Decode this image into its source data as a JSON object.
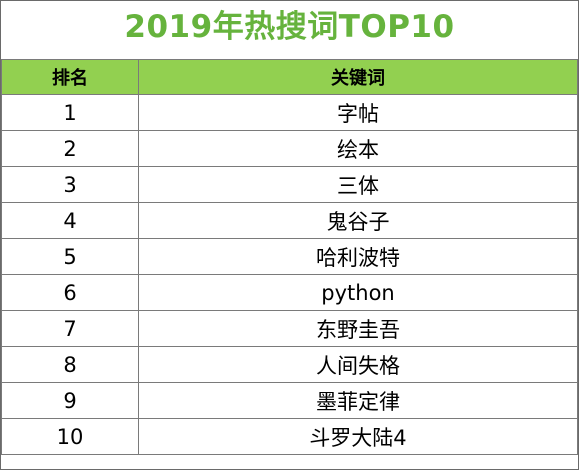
{
  "title": "2019年热搜词TOP10",
  "columns": [
    "排名",
    "关键词"
  ],
  "rows": [
    {
      "rank": "1",
      "keyword": "字帖"
    },
    {
      "rank": "2",
      "keyword": "绘本"
    },
    {
      "rank": "3",
      "keyword": "三体"
    },
    {
      "rank": "4",
      "keyword": "鬼谷子"
    },
    {
      "rank": "5",
      "keyword": "哈利波特"
    },
    {
      "rank": "6",
      "keyword": "python"
    },
    {
      "rank": "7",
      "keyword": "东野圭吾"
    },
    {
      "rank": "8",
      "keyword": "人间失格"
    },
    {
      "rank": "9",
      "keyword": "墨菲定律"
    },
    {
      "rank": "10",
      "keyword": "斗罗大陆4"
    }
  ],
  "colors": {
    "title": "#66b33d",
    "header_bg": "#92d050",
    "border": "#7a7a7a"
  }
}
